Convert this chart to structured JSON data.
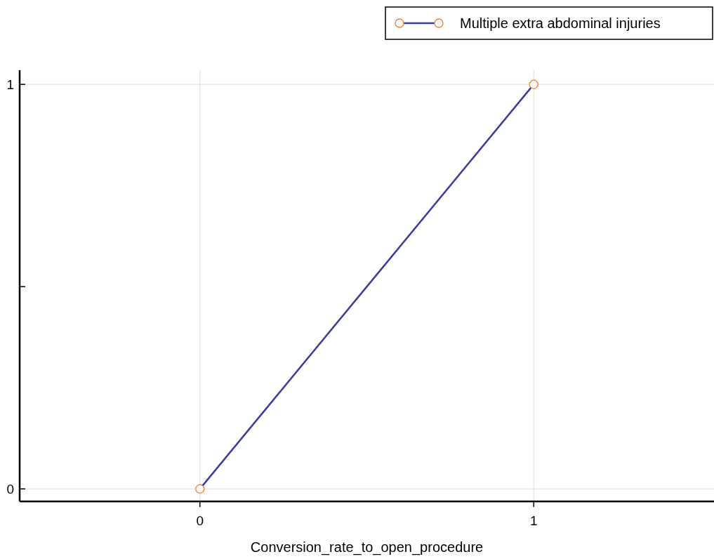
{
  "chart_data": {
    "type": "line",
    "xlabel": "Conversion_rate_to_open_procedure",
    "x": [
      0,
      1
    ],
    "series": [
      {
        "name": "Multiple extra abdominal injuries",
        "color": "#3a3aa0",
        "values": [
          0,
          1
        ]
      }
    ],
    "xlim": [
      -0.54,
      1.54
    ],
    "ylim": [
      -0.031,
      1.035
    ],
    "xticks": [
      0,
      1
    ],
    "yticks": [
      0,
      {
        "value": 0.5,
        "label": null
      },
      1
    ],
    "grid": true,
    "legend": "top right",
    "marker": "circle"
  }
}
